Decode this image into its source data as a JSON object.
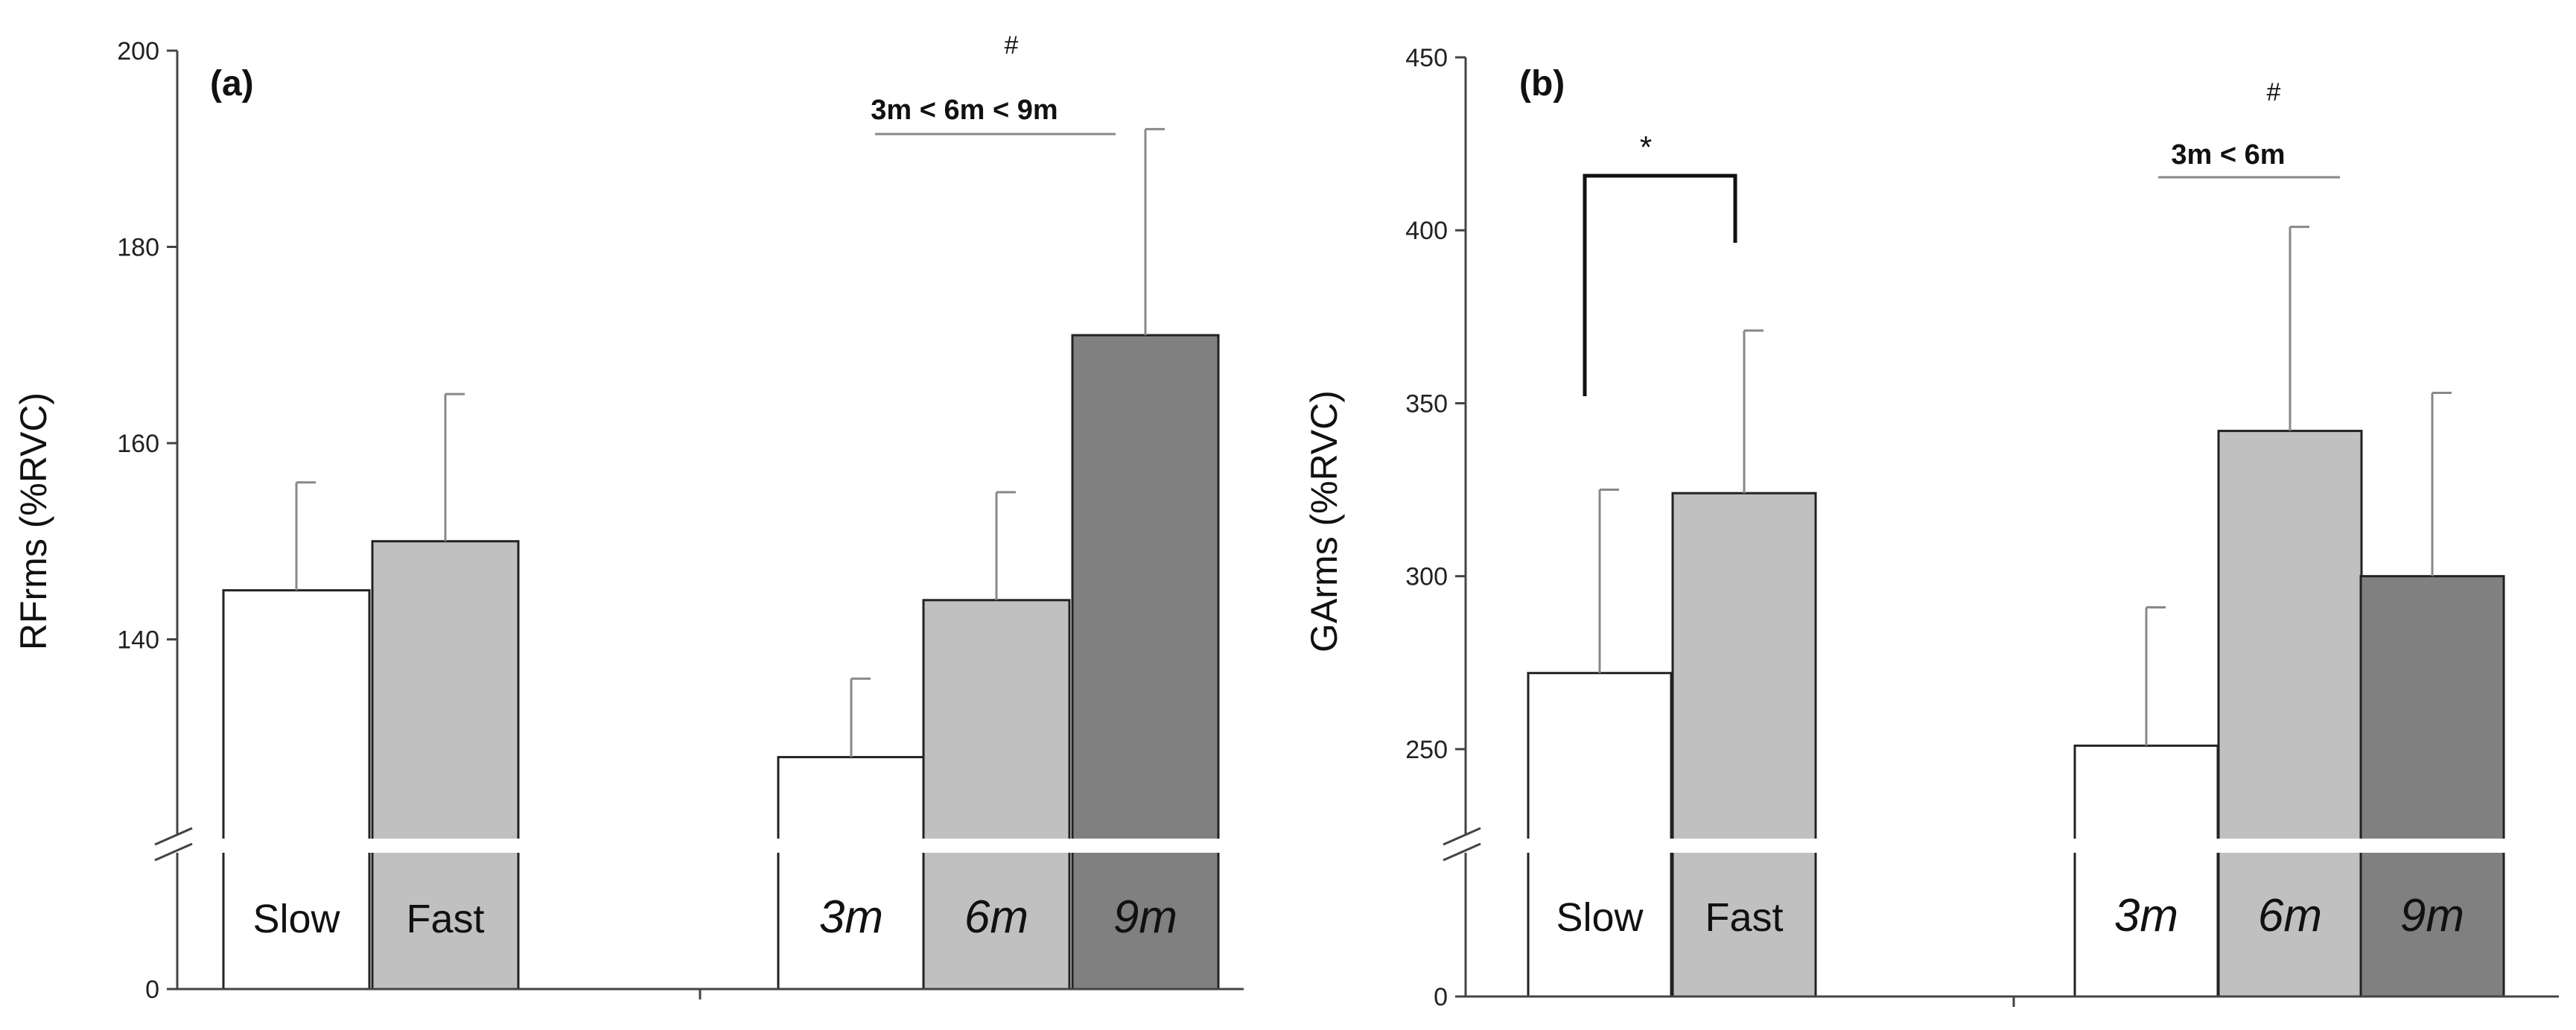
{
  "chart_data": [
    {
      "type": "bar",
      "panel_label": "(a)",
      "ylabel": "RFrms (%RVC)",
      "ylim_upper": [
        120,
        200
      ],
      "broken_axis": true,
      "yticks": [
        0,
        140,
        160,
        180,
        200
      ],
      "groups": [
        {
          "name": "speed",
          "categories": [
            "Slow",
            "Fast"
          ],
          "values": [
            145,
            150
          ],
          "errors": [
            11,
            15
          ],
          "colors": [
            "#ffffff",
            "#c0c0c0"
          ]
        },
        {
          "name": "distance",
          "categories": [
            "3m",
            "6m",
            "9m"
          ],
          "values": [
            128,
            144,
            171
          ],
          "errors": [
            8,
            11,
            21
          ],
          "colors": [
            "#ffffff",
            "#c0c0c0",
            "#808080"
          ]
        }
      ],
      "annotations": [
        {
          "text": "#",
          "group": "distance"
        },
        {
          "text": "3m < 6m < 9m",
          "group": "distance"
        }
      ]
    },
    {
      "type": "bar",
      "panel_label": "(b)",
      "ylabel": "GArms (%RVC)",
      "ylim_upper": [
        225,
        450
      ],
      "broken_axis": true,
      "yticks": [
        0,
        250,
        300,
        350,
        400,
        450
      ],
      "groups": [
        {
          "name": "speed",
          "categories": [
            "Slow",
            "Fast"
          ],
          "values": [
            272,
            324
          ],
          "errors": [
            53,
            47
          ],
          "colors": [
            "#ffffff",
            "#c0c0c0"
          ]
        },
        {
          "name": "distance",
          "categories": [
            "3m",
            "6m",
            "9m"
          ],
          "values": [
            251,
            342,
            300
          ],
          "errors": [
            40,
            59,
            53
          ],
          "colors": [
            "#ffffff",
            "#c0c0c0",
            "#808080"
          ]
        }
      ],
      "annotations": [
        {
          "text": "*",
          "group": "speed"
        },
        {
          "text": "#",
          "group": "distance"
        },
        {
          "text": "3m < 6m",
          "group": "distance"
        }
      ]
    }
  ]
}
